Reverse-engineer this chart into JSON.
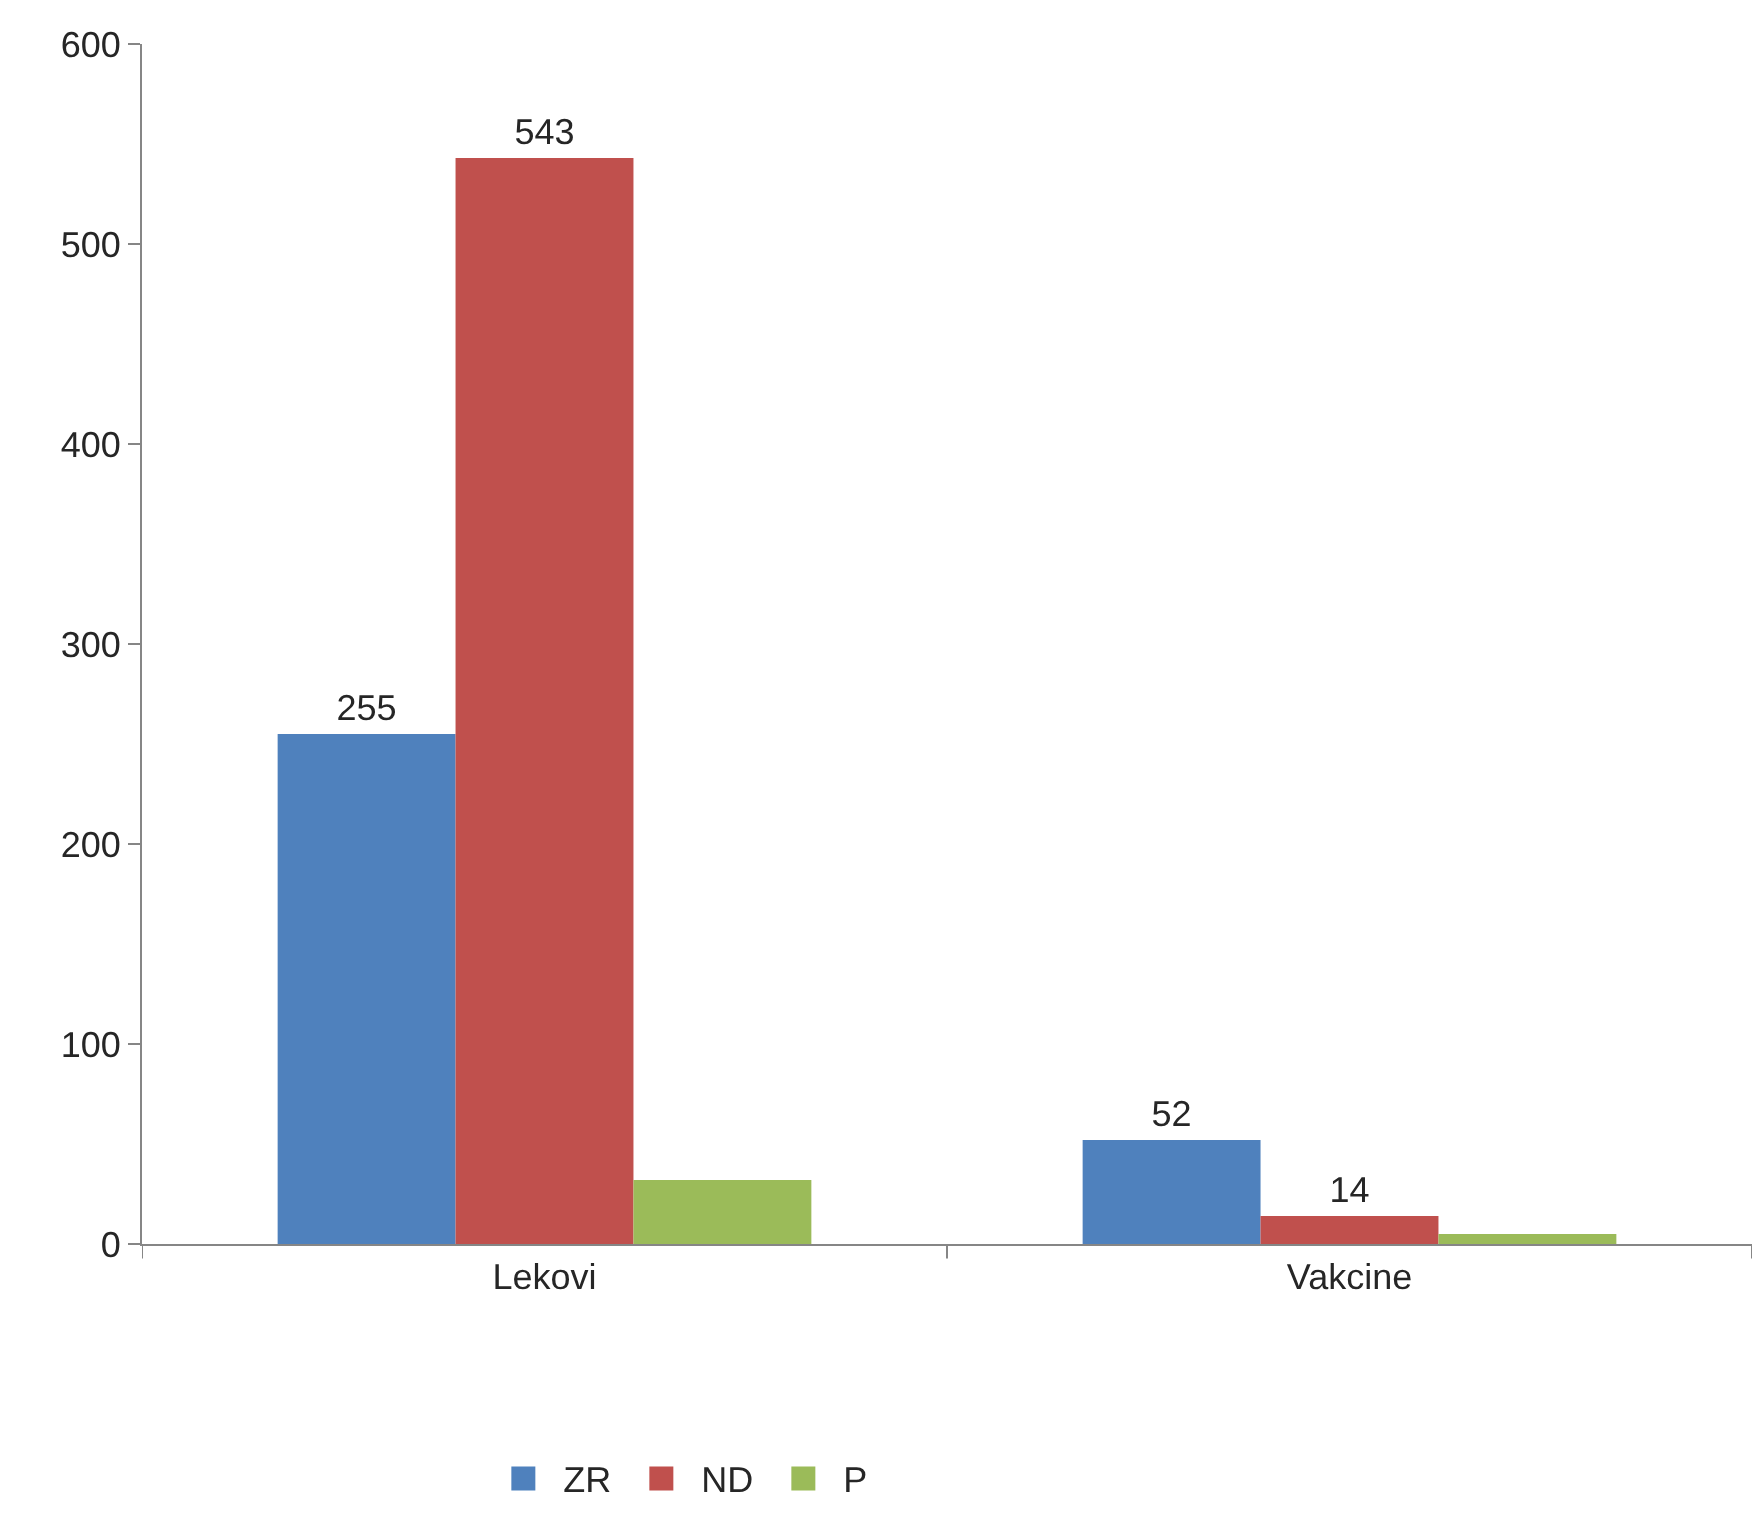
{
  "chart_data": {
    "type": "bar",
    "categories": [
      "Lekovi",
      "Vakcine"
    ],
    "series": [
      {
        "name": "ZR",
        "color": "#4f81bd",
        "values": [
          255,
          52
        ],
        "value_labels": [
          "255",
          "52"
        ]
      },
      {
        "name": "ND",
        "color": "#c0504d",
        "values": [
          543,
          14
        ],
        "value_labels": [
          "543",
          "14"
        ]
      },
      {
        "name": "P",
        "color": "#9bbb59",
        "values": [
          32,
          5
        ],
        "value_labels": [
          null,
          null
        ]
      }
    ],
    "ylim": [
      0,
      600
    ],
    "yticks": [
      0,
      100,
      200,
      300,
      400,
      500,
      600
    ],
    "grid": false,
    "legend": "bottom"
  }
}
